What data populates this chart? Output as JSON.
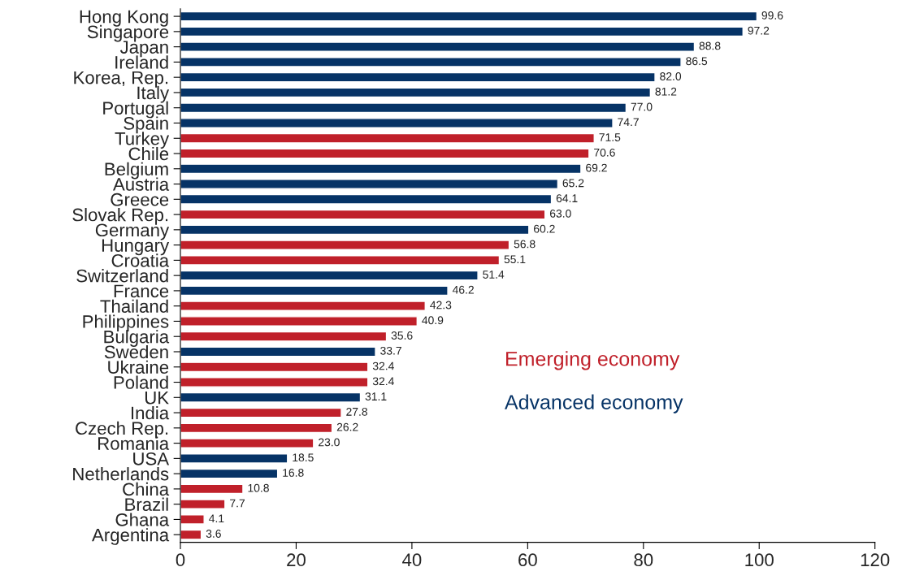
{
  "chart_data": {
    "type": "bar",
    "orientation": "horizontal",
    "categories": [
      "Hong Kong",
      "Singapore",
      "Japan",
      "Ireland",
      "Korea, Rep.",
      "Italy",
      "Portugal",
      "Spain",
      "Turkey",
      "Chile",
      "Belgium",
      "Austria",
      "Greece",
      "Slovak Rep.",
      "Germany",
      "Hungary",
      "Croatia",
      "Switzerland",
      "France",
      "Thailand",
      "Philippines",
      "Bulgaria",
      "Sweden",
      "Ukraine",
      "Poland",
      "UK",
      "India",
      "Czech Rep.",
      "Romania",
      "USA",
      "Netherlands",
      "China",
      "Brazil",
      "Ghana",
      "Argentina"
    ],
    "series": [
      {
        "name": "Emerging economy",
        "color": "#c0202a",
        "values": [
          null,
          null,
          null,
          null,
          null,
          null,
          null,
          null,
          71.5,
          70.6,
          null,
          null,
          null,
          63.0,
          null,
          56.8,
          55.1,
          null,
          null,
          42.3,
          40.9,
          35.6,
          null,
          32.4,
          32.4,
          null,
          27.8,
          26.2,
          23.0,
          null,
          null,
          10.8,
          7.7,
          4.1,
          3.6
        ],
        "value_labels": [
          null,
          null,
          null,
          null,
          null,
          null,
          null,
          null,
          "71.5",
          "70.6",
          null,
          null,
          null,
          "63.0",
          null,
          "56.8",
          "55.1",
          null,
          null,
          "42.3",
          "40.9",
          "35.6",
          null,
          "32.4",
          "32.4",
          null,
          "27.8",
          "26.2",
          "23.0",
          null,
          null,
          "10.8",
          "7.7",
          "4.1",
          "3.6"
        ]
      },
      {
        "name": "Advanced economy",
        "color": "#063366",
        "values": [
          99.6,
          97.2,
          88.8,
          86.5,
          82.0,
          81.2,
          77.0,
          74.7,
          null,
          null,
          69.2,
          65.2,
          64.1,
          null,
          60.2,
          null,
          null,
          51.4,
          46.2,
          null,
          null,
          null,
          33.7,
          null,
          null,
          31.1,
          null,
          null,
          null,
          18.5,
          16.8,
          null,
          null,
          null,
          null
        ],
        "value_labels": [
          "99.6",
          "97.2",
          "88.8",
          "86.5",
          "82.0",
          "81.2",
          "77.0",
          "74.7",
          null,
          null,
          "69.2",
          "65.2",
          "64.1",
          null,
          "60.2",
          null,
          null,
          "51.4",
          "46.2",
          null,
          null,
          null,
          "33.7",
          null,
          null,
          "31.1",
          null,
          null,
          null,
          "18.5",
          "16.8",
          null,
          null,
          null,
          null
        ]
      }
    ],
    "xlim": [
      0,
      120
    ],
    "xticks": [
      0,
      20,
      40,
      60,
      80,
      100,
      120
    ],
    "grid": false,
    "legend": "right"
  }
}
